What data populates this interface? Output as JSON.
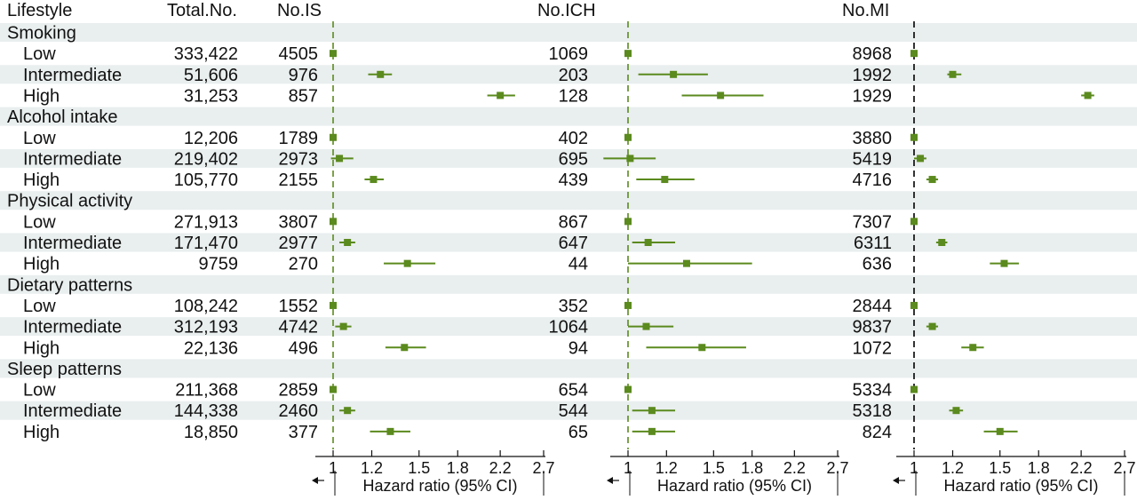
{
  "table": {
    "headers": {
      "lifestyle": "Lifestyle",
      "total": "Total.No.",
      "is": "No.IS",
      "ich": "No.ICH",
      "mi": "No.MI"
    },
    "groups": [
      {
        "name": "Smoking",
        "rows": [
          {
            "label": "Low",
            "total": "333,422",
            "is": "4505",
            "ich": "1069",
            "mi": "8968"
          },
          {
            "label": "Intermediate",
            "total": "51,606",
            "is": "976",
            "ich": "203",
            "mi": "1992"
          },
          {
            "label": "High",
            "total": "31,253",
            "is": "857",
            "ich": "128",
            "mi": "1929"
          }
        ]
      },
      {
        "name": "Alcohol intake",
        "rows": [
          {
            "label": "Low",
            "total": "12,206",
            "is": "1789",
            "ich": "402",
            "mi": "3880"
          },
          {
            "label": "Intermediate",
            "total": "219,402",
            "is": "2973",
            "ich": "695",
            "mi": "5419"
          },
          {
            "label": "High",
            "total": "105,770",
            "is": "2155",
            "ich": "439",
            "mi": "4716"
          }
        ]
      },
      {
        "name": "Physical activity",
        "rows": [
          {
            "label": "Low",
            "total": "271,913",
            "is": "3807",
            "ich": "867",
            "mi": "7307"
          },
          {
            "label": "Intermediate",
            "total": "171,470",
            "is": "2977",
            "ich": "647",
            "mi": "6311"
          },
          {
            "label": "High",
            "total": "9759",
            "is": "270",
            "ich": "44",
            "mi": "636"
          }
        ]
      },
      {
        "name": "Dietary patterns",
        "rows": [
          {
            "label": "Low",
            "total": "108,242",
            "is": "1552",
            "ich": "352",
            "mi": "2844"
          },
          {
            "label": "Intermediate",
            "total": "312,193",
            "is": "4742",
            "ich": "1064",
            "mi": "9837"
          },
          {
            "label": "High",
            "total": "22,136",
            "is": "496",
            "ich": "94",
            "mi": "1072"
          }
        ]
      },
      {
        "name": "Sleep patterns",
        "rows": [
          {
            "label": "Low",
            "total": "211,368",
            "is": "2859",
            "ich": "654",
            "mi": "5334"
          },
          {
            "label": "Intermediate",
            "total": "144,338",
            "is": "2460",
            "ich": "544",
            "mi": "5318"
          },
          {
            "label": "High",
            "total": "18,850",
            "is": "377",
            "ich": "65",
            "mi": "824"
          }
        ]
      }
    ]
  },
  "chart_data": {
    "type": "forest",
    "scale": "log",
    "xlabel": "Hazard ratio (95% CI)",
    "xlim": [
      0.9,
      2.7
    ],
    "ticks": [
      1,
      1.2,
      1.5,
      1.8,
      2.2,
      2.7
    ],
    "reference": 1,
    "colors": {
      "marker": "#5b8a1e",
      "ref_is_ich": "#5b8a1e",
      "ref_mi": "#000000",
      "band": "#e9eeee"
    },
    "panels": [
      {
        "name": "No.IS",
        "points": [
          [
            1,
            1,
            1
          ],
          [
            1.25,
            1.18,
            1.32
          ],
          [
            2.2,
            2.07,
            2.36
          ],
          [
            1,
            1,
            1
          ],
          [
            1.03,
            0.99,
            1.1
          ],
          [
            1.21,
            1.16,
            1.27
          ],
          [
            1,
            1,
            1
          ],
          [
            1.07,
            1.03,
            1.11
          ],
          [
            1.42,
            1.27,
            1.62
          ],
          [
            1,
            1,
            1
          ],
          [
            1.05,
            1.01,
            1.09
          ],
          [
            1.4,
            1.28,
            1.55
          ],
          [
            1,
            1,
            1
          ],
          [
            1.07,
            1.03,
            1.11
          ],
          [
            1.31,
            1.19,
            1.44
          ]
        ]
      },
      {
        "name": "No.ICH",
        "points": [
          [
            1,
            1,
            1
          ],
          [
            1.24,
            1.05,
            1.46
          ],
          [
            1.55,
            1.29,
            1.9
          ],
          [
            1,
            1,
            1
          ],
          [
            1.01,
            0.89,
            1.14
          ],
          [
            1.19,
            1.04,
            1.37
          ],
          [
            1,
            1,
            1
          ],
          [
            1.1,
            1.02,
            1.25
          ],
          [
            1.32,
            1,
            1.8
          ],
          [
            1,
            1,
            1
          ],
          [
            1.09,
            1,
            1.24
          ],
          [
            1.42,
            1.09,
            1.75
          ],
          [
            1,
            1,
            1
          ],
          [
            1.12,
            1.02,
            1.25
          ],
          [
            1.12,
            1.02,
            1.25
          ]
        ]
      },
      {
        "name": "No.MI",
        "points": [
          [
            1,
            1,
            1
          ],
          [
            1.2,
            1.17,
            1.25
          ],
          [
            2.27,
            2.2,
            2.34
          ],
          [
            1,
            1,
            1
          ],
          [
            1.03,
            1,
            1.06
          ],
          [
            1.09,
            1.06,
            1.12
          ],
          [
            1,
            1,
            1
          ],
          [
            1.14,
            1.11,
            1.17
          ],
          [
            1.53,
            1.43,
            1.64
          ],
          [
            1,
            1,
            1
          ],
          [
            1.09,
            1.06,
            1.12
          ],
          [
            1.32,
            1.25,
            1.39
          ],
          [
            1,
            1,
            1
          ],
          [
            1.22,
            1.18,
            1.26
          ],
          [
            1.5,
            1.39,
            1.63
          ]
        ]
      }
    ]
  }
}
